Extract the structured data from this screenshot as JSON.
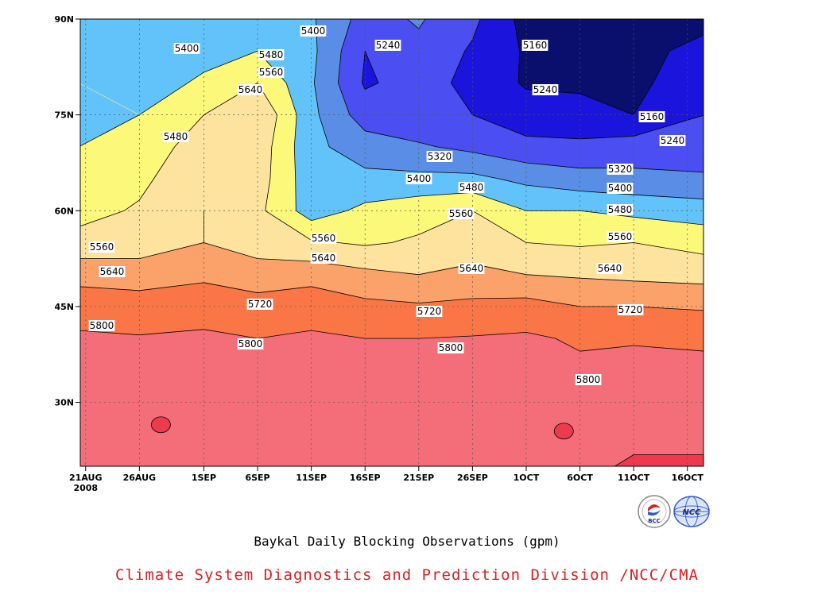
{
  "chart_data": {
    "type": "contour",
    "title": "Baykal Daily Blocking Observations (gpm)",
    "credit": "Climate System Diagnostics and Prediction Division /NCC/CMA",
    "xlabel": "",
    "ylabel": "",
    "x_ticks": [
      {
        "label": "21AUG",
        "sublabel": "2008",
        "day": 0
      },
      {
        "label": "26AUG",
        "day": 5
      },
      {
        "label": "1SEP",
        "day": 11
      },
      {
        "label": "6SEP",
        "day": 16
      },
      {
        "label": "11SEP",
        "day": 21
      },
      {
        "label": "16SEP",
        "day": 26
      },
      {
        "label": "21SEP",
        "day": 31
      },
      {
        "label": "26SEP",
        "day": 36
      },
      {
        "label": "1OCT",
        "day": 41
      },
      {
        "label": "6OCT",
        "day": 46
      },
      {
        "label": "11OCT",
        "day": 51
      },
      {
        "label": "16OCT",
        "day": 56
      }
    ],
    "x_range_days": [
      -0.5,
      57.5
    ],
    "y_ticks": [
      {
        "label": "30N",
        "lat": 30
      },
      {
        "label": "45N",
        "lat": 45
      },
      {
        "label": "60N",
        "lat": 60
      },
      {
        "label": "75N",
        "lat": 75
      },
      {
        "label": "90N",
        "lat": 90
      }
    ],
    "ylim": [
      20,
      90
    ],
    "grid": true,
    "contour_levels": [
      5160,
      5240,
      5320,
      5400,
      5480,
      5560,
      5640,
      5720,
      5800,
      5880
    ],
    "fill_colors": {
      "below_5160": "#0a0f6e",
      "5160_5240": "#1a14dc",
      "5240_5320": "#4b4ef0",
      "5320_5400": "#5a8ee6",
      "5400_5480": "#62c3fa",
      "5480_5560": "#fcf87a",
      "5560_5640": "#fde39e",
      "5640_5720": "#fba26a",
      "5720_5800": "#fb7646",
      "5800_5880": "#f46e7a",
      "above_5880": "#ee3a4e"
    },
    "contour_label_values": [
      "5160",
      "5160",
      "5240",
      "5240",
      "5240",
      "5320",
      "5320",
      "5400",
      "5400",
      "5400",
      "5400",
      "5480",
      "5480",
      "5480",
      "5480",
      "5560",
      "5560",
      "5560",
      "5560",
      "5560",
      "5640",
      "5640",
      "5640",
      "5640",
      "5640",
      "5720",
      "5720",
      "5720",
      "5800",
      "5800",
      "5800",
      "5800",
      "5800"
    ],
    "grid_values": {
      "days": [
        0,
        5,
        11,
        16,
        21,
        26,
        31,
        36,
        41,
        46,
        51,
        56
      ],
      "lats": [
        20,
        30,
        40,
        45,
        50,
        55,
        60,
        65,
        70,
        75,
        80,
        85,
        90
      ],
      "rows_by_lat": [
        [
          5860,
          5860,
          5860,
          5860,
          5860,
          5860,
          5860,
          5860,
          5860,
          5865,
          5890,
          5890
        ],
        [
          5840,
          5840,
          5840,
          5840,
          5840,
          5840,
          5840,
          5840,
          5840,
          5840,
          5840,
          5840
        ],
        [
          5810,
          5805,
          5808,
          5800,
          5810,
          5800,
          5800,
          5805,
          5812,
          5790,
          5795,
          5790
        ],
        [
          5770,
          5760,
          5780,
          5750,
          5770,
          5740,
          5730,
          5740,
          5750,
          5720,
          5720,
          5710
        ],
        [
          5690,
          5680,
          5700,
          5680,
          5690,
          5660,
          5640,
          5660,
          5640,
          5630,
          5620,
          5610
        ],
        [
          5590,
          5600,
          5640,
          5600,
          5570,
          5550,
          5570,
          5600,
          5560,
          5550,
          5560,
          5530
        ],
        [
          5530,
          5570,
          5640,
          5580,
          5440,
          5500,
          5530,
          5560,
          5480,
          5480,
          5460,
          5440
        ],
        [
          5500,
          5540,
          5630,
          5600,
          5430,
          5420,
          5420,
          5420,
          5380,
          5350,
          5340,
          5330
        ],
        [
          5480,
          5500,
          5610,
          5610,
          5420,
          5360,
          5330,
          5300,
          5260,
          5260,
          5280,
          5280
        ],
        [
          5470,
          5480,
          5560,
          5640,
          5420,
          5280,
          5260,
          5240,
          5200,
          5180,
          5160,
          5240
        ],
        [
          5480,
          5420,
          5500,
          5560,
          5410,
          5230,
          5270,
          5220,
          5150,
          5150,
          5130,
          5240
        ],
        [
          5400,
          5400,
          5440,
          5480,
          5420,
          5240,
          5300,
          5230,
          5150,
          5140,
          5120,
          5200
        ],
        [
          5420,
          5440,
          5420,
          5420,
          5410,
          5290,
          5330,
          5260,
          5130,
          5130,
          5100,
          5120
        ]
      ]
    }
  },
  "logos": [
    {
      "name": "bcc-logo",
      "text": "BCC"
    },
    {
      "name": "ncc-logo",
      "text": "NCC"
    }
  ],
  "colors": {
    "credit": "#d52222",
    "title": "#000000"
  }
}
